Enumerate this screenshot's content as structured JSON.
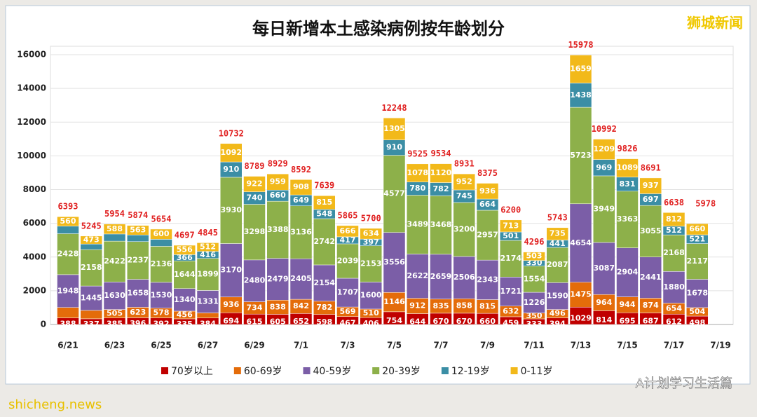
{
  "chart_data": {
    "type": "stacked_bar",
    "title": "每日新增本土感染病例按年龄划分",
    "watermark": "狮城新闻",
    "footer_left": "shicheng.news",
    "footer_right": "A计划学习生活篇",
    "categories": [
      "6/21",
      null,
      "6/23",
      null,
      "6/25",
      null,
      "6/27",
      null,
      "6/29",
      null,
      "7/1",
      null,
      "7/3",
      null,
      "7/5",
      null,
      "7/7",
      null,
      "7/9",
      null,
      "7/11",
      null,
      "7/13",
      null,
      "7/15",
      null,
      "7/17",
      null,
      "7/19"
    ],
    "ylim": [
      0,
      16500
    ],
    "yticks": [
      0,
      2000,
      4000,
      6000,
      8000,
      10000,
      12000,
      14000,
      16000
    ],
    "grid": true,
    "legend": "bottom",
    "totals": [
      6393,
      5245,
      5954,
      5874,
      5654,
      4697,
      4845,
      10732,
      8789,
      8929,
      8592,
      7639,
      5865,
      5700,
      12248,
      9525,
      9534,
      8931,
      8375,
      6200,
      4296,
      5743,
      15978,
      10992,
      9826,
      8691,
      6638,
      5978,
      null
    ],
    "series": [
      {
        "name": "70岁以上",
        "color": "#c00000",
        "values": [
          388,
          337,
          385,
          396,
          392,
          335,
          384,
          694,
          615,
          605,
          652,
          598,
          467,
          406,
          754,
          644,
          670,
          670,
          660,
          459,
          333,
          394,
          1029,
          814,
          695,
          687,
          612,
          498,
          null
        ]
      },
      {
        "name": "60-69岁",
        "color": "#e46c0a",
        "values": [
          620,
          500,
          505,
          623,
          578,
          456,
          303,
          936,
          734,
          838,
          842,
          782,
          569,
          510,
          1146,
          912,
          835,
          858,
          815,
          632,
          350,
          496,
          1475,
          964,
          944,
          874,
          654,
          504,
          null
        ],
        "value_labels": [
          null,
          null,
          "505",
          "623",
          "578",
          "456",
          null,
          "936",
          "734",
          "838",
          "842",
          "782",
          "569",
          "510",
          "1146",
          "912",
          "835",
          "858",
          "815",
          "632",
          "350",
          "496",
          "1475",
          "964",
          "944",
          "874",
          "654",
          "504",
          null
        ]
      },
      {
        "name": "40-59岁",
        "color": "#7b5ea7",
        "values": [
          1948,
          1445,
          1630,
          1658,
          1530,
          1340,
          1331,
          3170,
          2480,
          2479,
          2405,
          2154,
          1707,
          1600,
          3556,
          2622,
          2659,
          2506,
          2343,
          1721,
          1226,
          1590,
          4654,
          3087,
          2904,
          2441,
          1880,
          1678,
          null
        ]
      },
      {
        "name": "20-39岁",
        "color": "#8db04a",
        "values": [
          2428,
          2158,
          2422,
          2237,
          2136,
          1644,
          1899,
          3930,
          3298,
          3388,
          3136,
          2742,
          2039,
          2153,
          4577,
          3489,
          3468,
          3200,
          2957,
          2174,
          1554,
          2087,
          5723,
          3949,
          3363,
          3055,
          2168,
          2117,
          null
        ]
      },
      {
        "name": "12-19岁",
        "color": "#3b8ea5",
        "values": [
          449,
          332,
          424,
          397,
          418,
          366,
          416,
          910,
          740,
          660,
          649,
          548,
          417,
          397,
          910,
          780,
          782,
          745,
          664,
          501,
          330,
          441,
          1438,
          969,
          831,
          697,
          512,
          521,
          null
        ],
        "value_labels": [
          null,
          null,
          null,
          null,
          null,
          "366",
          "416",
          "910",
          "740",
          "660",
          "649",
          "548",
          "417",
          "397",
          "910",
          "780",
          "782",
          "745",
          "664",
          "501",
          "330",
          "441",
          "1438",
          "969",
          "831",
          "697",
          "512",
          "521",
          null
        ]
      },
      {
        "name": "0-11岁",
        "color": "#f2b91a",
        "values": [
          560,
          473,
          588,
          563,
          600,
          556,
          512,
          1092,
          922,
          959,
          908,
          815,
          666,
          634,
          1305,
          1078,
          1120,
          952,
          936,
          713,
          503,
          735,
          1659,
          1209,
          1089,
          937,
          812,
          660,
          null
        ]
      }
    ]
  }
}
